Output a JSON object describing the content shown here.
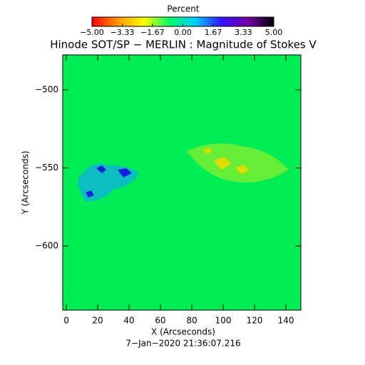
{
  "chart_data": {
    "type": "image",
    "title": "Hinode SOT/SP − MERLIN : Magnitude of Stokes V",
    "x_label": "X (Arcseconds)",
    "y_label": "Y (Arcseconds)",
    "footer": "7−Jan−2020 21:36:07.216",
    "xlim": [
      -2.3,
      149.5
    ],
    "xticks": [
      0,
      20,
      40,
      60,
      80,
      100,
      120,
      140
    ],
    "ylim": [
      -641,
      -477.6
    ],
    "yticks": [
      {
        "value": -500,
        "label": "−500"
      },
      {
        "value": -550,
        "label": "−550"
      },
      {
        "value": -600,
        "label": "−600"
      }
    ],
    "colorbar": {
      "label": "Percent",
      "lim": [
        -5,
        5
      ],
      "ticks": [
        {
          "value": -5,
          "label": "−5.00"
        },
        {
          "value": -3.33,
          "label": "−3.33"
        },
        {
          "value": -1.67,
          "label": "−1.67"
        },
        {
          "value": 0,
          "label": "0.00"
        },
        {
          "value": 1.67,
          "label": "1.67"
        },
        {
          "value": 3.33,
          "label": "3.33"
        },
        {
          "value": 5,
          "label": "5.00"
        }
      ],
      "colors": [
        "#ff0000",
        "#ff9900",
        "#ffff00",
        "#00ff66",
        "#00ccff",
        "#3311ff",
        "#7700aa",
        "#000000"
      ]
    }
  }
}
